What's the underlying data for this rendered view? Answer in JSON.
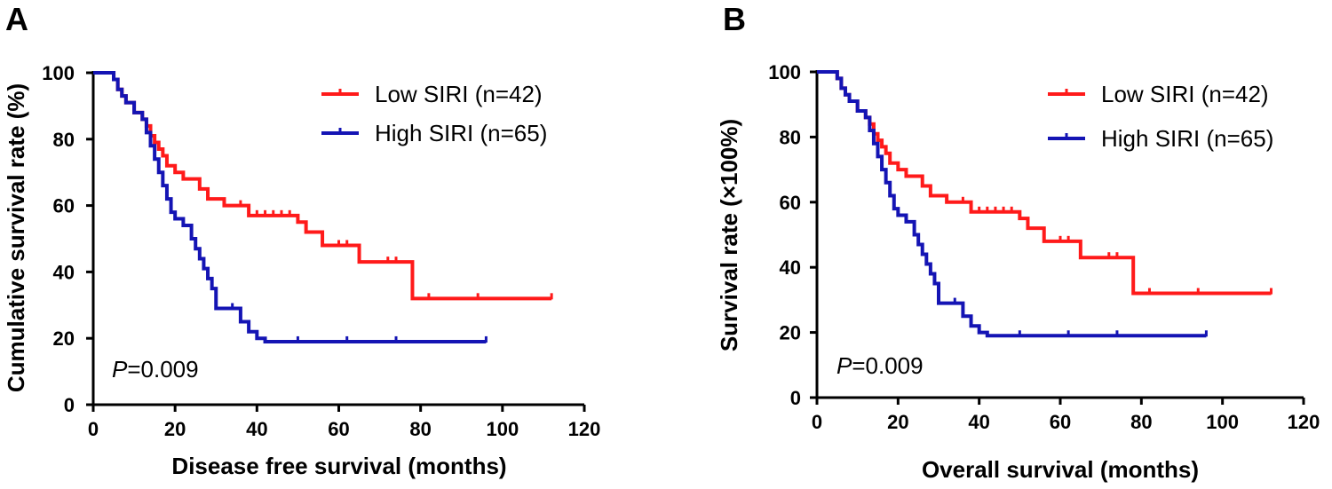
{
  "panels": [
    {
      "letter": "A",
      "xlabel": "Disease free survival (months)",
      "ylabel": "Cumulative survival rate (%)",
      "pvalue_prefix": "P",
      "pvalue_text": "=0.009"
    },
    {
      "letter": "B",
      "xlabel": "Overall survival (months)",
      "ylabel": "Survival rate (×100%)",
      "pvalue_prefix": "P",
      "pvalue_text": "=0.009"
    }
  ],
  "chart_data": [
    {
      "type": "line",
      "step": true,
      "xlabel": "Disease free survival (months)",
      "ylabel": "Cumulative survival rate (%)",
      "xlim": [
        0,
        120
      ],
      "ylim": [
        0,
        100
      ],
      "xticks": [
        0,
        20,
        40,
        60,
        80,
        100,
        120
      ],
      "yticks": [
        0,
        20,
        40,
        60,
        80,
        100
      ],
      "legend": "top-right",
      "annotation": "P=0.009",
      "series": [
        {
          "name": "Low SIRI (n=42)",
          "color": "#ff1a1a",
          "x": [
            0,
            4,
            5,
            6,
            7,
            8,
            10,
            12,
            13,
            14,
            15,
            16,
            17,
            18,
            20,
            22,
            26,
            28,
            32,
            38,
            50,
            52,
            56,
            65,
            78,
            112
          ],
          "y": [
            100,
            100,
            98,
            95,
            93,
            91,
            88,
            86,
            84,
            81,
            79,
            77,
            75,
            72,
            70,
            68,
            65,
            62,
            60,
            57,
            55,
            52,
            48,
            43,
            32,
            32
          ],
          "censor_x": [
            12,
            36,
            40,
            42,
            44,
            46,
            48,
            60,
            62,
            72,
            74,
            82,
            94,
            112
          ],
          "censor_y": [
            86,
            60,
            57,
            57,
            57,
            57,
            57,
            48,
            48,
            43,
            43,
            32,
            32,
            32
          ]
        },
        {
          "name": "High SIRI (n=65)",
          "color": "#1414b4",
          "x": [
            0,
            4,
            5,
            6,
            7,
            8,
            10,
            12,
            13,
            14,
            15,
            16,
            17,
            18,
            19,
            20,
            22,
            24,
            25,
            26,
            27,
            28,
            29,
            30,
            36,
            38,
            40,
            42,
            96
          ],
          "y": [
            100,
            100,
            98,
            95,
            93,
            91,
            88,
            86,
            82,
            78,
            74,
            70,
            66,
            62,
            58,
            56,
            54,
            50,
            47,
            44,
            41,
            38,
            35,
            29,
            25,
            22,
            20,
            19,
            19
          ],
          "censor_x": [
            13,
            26,
            27,
            28,
            30,
            34,
            36,
            50,
            62,
            74,
            96
          ],
          "censor_y": [
            82,
            44,
            41,
            38,
            29,
            29,
            25,
            19,
            19,
            19,
            19
          ]
        }
      ]
    },
    {
      "type": "line",
      "step": true,
      "xlabel": "Overall survival (months)",
      "ylabel": "Survival rate (×100%)",
      "xlim": [
        0,
        120
      ],
      "ylim": [
        0,
        100
      ],
      "xticks": [
        0,
        20,
        40,
        60,
        80,
        100,
        120
      ],
      "yticks": [
        0,
        20,
        40,
        60,
        80,
        100
      ],
      "legend": "top-right",
      "annotation": "P=0.009",
      "series": [
        {
          "name": "Low SIRI (n=42)",
          "color": "#ff1a1a",
          "x": [
            0,
            4,
            5,
            6,
            7,
            8,
            10,
            12,
            13,
            14,
            15,
            16,
            17,
            18,
            20,
            22,
            26,
            28,
            32,
            38,
            50,
            52,
            56,
            65,
            78,
            112
          ],
          "y": [
            100,
            100,
            98,
            95,
            93,
            91,
            88,
            86,
            84,
            81,
            79,
            77,
            75,
            72,
            70,
            68,
            65,
            62,
            60,
            57,
            55,
            52,
            48,
            43,
            32,
            32
          ],
          "censor_x": [
            12,
            36,
            40,
            42,
            44,
            46,
            48,
            60,
            62,
            72,
            74,
            82,
            94,
            112
          ],
          "censor_y": [
            86,
            60,
            57,
            57,
            57,
            57,
            57,
            48,
            48,
            43,
            43,
            32,
            32,
            32
          ]
        },
        {
          "name": "High SIRI (n=65)",
          "color": "#1414b4",
          "x": [
            0,
            4,
            5,
            6,
            7,
            8,
            10,
            12,
            13,
            14,
            15,
            16,
            17,
            18,
            19,
            20,
            22,
            24,
            25,
            26,
            27,
            28,
            29,
            30,
            36,
            38,
            40,
            42,
            96
          ],
          "y": [
            100,
            100,
            98,
            95,
            93,
            91,
            88,
            86,
            82,
            78,
            74,
            70,
            66,
            62,
            58,
            56,
            54,
            50,
            47,
            44,
            41,
            38,
            35,
            29,
            25,
            22,
            20,
            19,
            19
          ],
          "censor_x": [
            13,
            26,
            27,
            28,
            30,
            34,
            36,
            50,
            62,
            74,
            96
          ],
          "censor_y": [
            82,
            44,
            41,
            38,
            29,
            29,
            25,
            19,
            19,
            19,
            19
          ]
        }
      ]
    }
  ]
}
